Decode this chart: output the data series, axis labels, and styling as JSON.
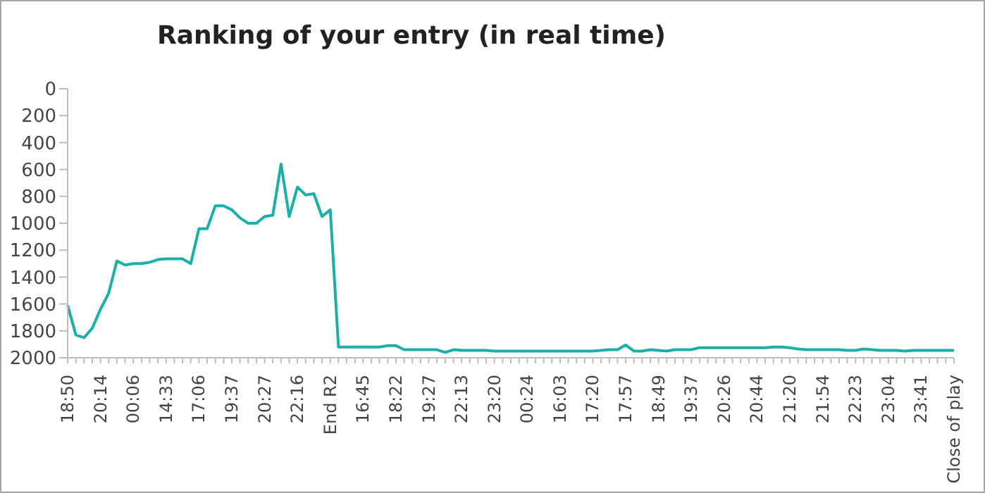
{
  "chart_data": {
    "type": "line",
    "title": "Ranking of your entry (in real time)",
    "categories": [
      "18:50",
      null,
      null,
      null,
      "20:14",
      null,
      null,
      null,
      "00:06",
      null,
      null,
      null,
      "14:33",
      null,
      null,
      null,
      "17:06",
      null,
      null,
      null,
      "19:37",
      null,
      null,
      null,
      "20:27",
      null,
      null,
      null,
      "22:16",
      null,
      null,
      null,
      "End R2",
      null,
      null,
      null,
      "16:45",
      null,
      null,
      null,
      "18:22",
      null,
      null,
      null,
      "19:27",
      null,
      null,
      null,
      "22:13",
      null,
      null,
      null,
      "23:20",
      null,
      null,
      null,
      "00:24",
      null,
      null,
      null,
      "16:03",
      null,
      null,
      null,
      "17:20",
      null,
      null,
      null,
      "17:57",
      null,
      null,
      null,
      "18:49",
      null,
      null,
      null,
      "19:37",
      null,
      null,
      null,
      "20:26",
      null,
      null,
      null,
      "20:44",
      null,
      null,
      null,
      "21:20",
      null,
      null,
      null,
      "21:54",
      null,
      null,
      null,
      "22:23",
      null,
      null,
      null,
      "23:04",
      null,
      null,
      null,
      "23:41",
      null,
      null,
      null,
      "Close of play"
    ],
    "series": [
      {
        "color": "#1aafa8",
        "values": [
          1610,
          1830,
          1850,
          1780,
          1640,
          1520,
          1280,
          1310,
          1300,
          1300,
          1290,
          1270,
          1265,
          1265,
          1265,
          1300,
          1040,
          1040,
          870,
          870,
          900,
          960,
          1000,
          1000,
          950,
          940,
          560,
          950,
          730,
          790,
          780,
          950,
          900,
          1920,
          1920,
          1920,
          1920,
          1920,
          1920,
          1910,
          1910,
          1940,
          1940,
          1940,
          1940,
          1940,
          1960,
          1940,
          1945,
          1945,
          1945,
          1945,
          1950,
          1950,
          1950,
          1950,
          1950,
          1950,
          1950,
          1950,
          1950,
          1950,
          1950,
          1950,
          1950,
          1945,
          1940,
          1940,
          1905,
          1950,
          1950,
          1940,
          1945,
          1950,
          1940,
          1940,
          1940,
          1925,
          1925,
          1925,
          1925,
          1925,
          1925,
          1925,
          1925,
          1925,
          1920,
          1920,
          1925,
          1935,
          1940,
          1940,
          1940,
          1940,
          1940,
          1945,
          1945,
          1935,
          1940,
          1945,
          1945,
          1945,
          1950,
          1945,
          1945,
          1945,
          1945,
          1945,
          1945
        ]
      }
    ],
    "ylim": [
      2000,
      0
    ],
    "yticks": [
      0,
      200,
      400,
      600,
      800,
      1000,
      1200,
      1400,
      1600,
      1800,
      2000
    ],
    "grid": false,
    "legend": false,
    "marker": "none",
    "line_style": "solid"
  }
}
